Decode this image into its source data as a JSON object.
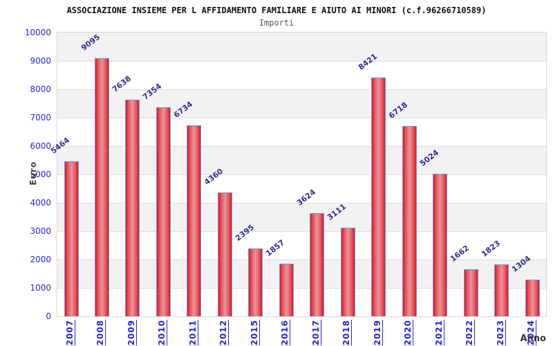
{
  "header": {
    "title": "ASSOCIAZIONE INSIEME PER L AFFIDAMENTO FAMILIARE E AIUTO AI MINORI (c.f.96266710589)",
    "subtitle": "Importi"
  },
  "chart_data": {
    "type": "bar",
    "title": "Importi",
    "categories": [
      "2007",
      "2008",
      "2009",
      "2010",
      "2011",
      "2012",
      "2015",
      "2016",
      "2017",
      "2018",
      "2019",
      "2020",
      "2021",
      "2022",
      "2023",
      "2024"
    ],
    "values": [
      5464,
      9095,
      7638,
      7354,
      6734,
      4360,
      2395,
      1857,
      3624,
      3111,
      8421,
      6718,
      5024,
      1662,
      1823,
      1304
    ],
    "xlabel": "Anno",
    "ylabel": "Euro",
    "ylim": [
      0,
      10000
    ],
    "ytick_step": 1000,
    "grid": "horizontal-only",
    "legend": "none",
    "colors": {
      "bar_edge_red": "#dd1425",
      "bar_center_highlight": "#dd999e",
      "bar_border_blue": "#58a7ec",
      "axis_tick_blue": "#2424e0",
      "value_label_navy": "#2e3192",
      "axis_title_gray": "#444444",
      "band_gray": "#f2f2f2",
      "band_white": "#ffffff",
      "gridline_gray": "#dcdcdc"
    }
  }
}
